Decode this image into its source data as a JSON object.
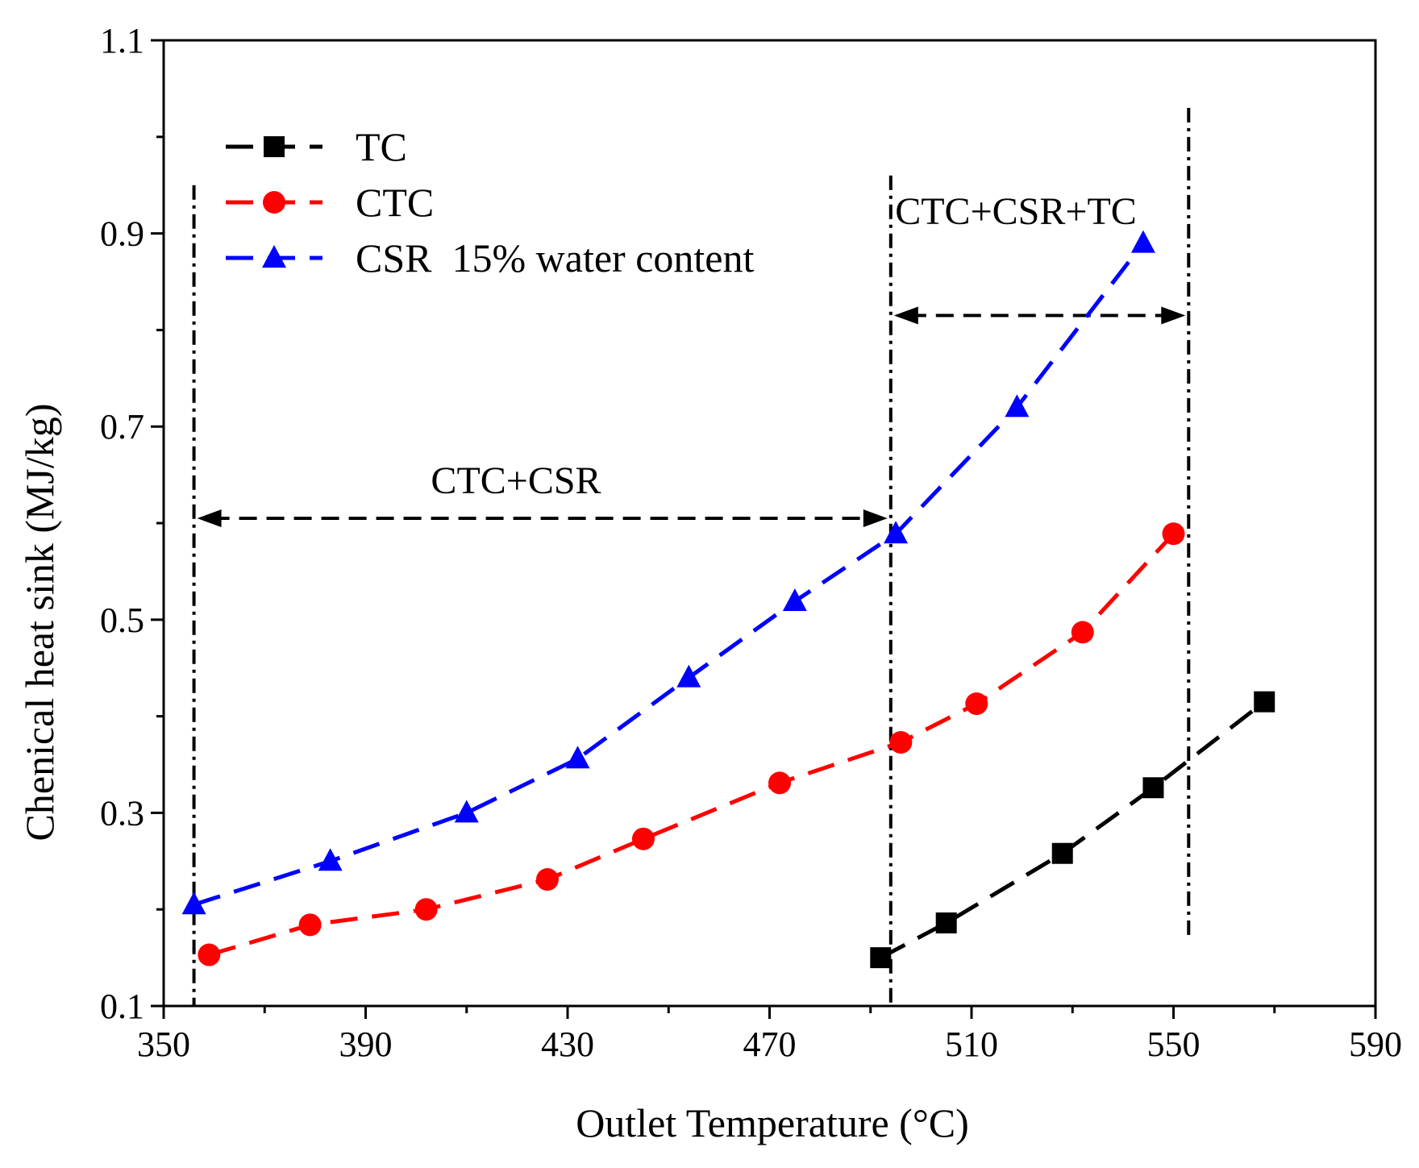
{
  "chart_data": {
    "type": "line",
    "title": "",
    "xlabel": "Outlet Temperature (°C)",
    "ylabel": "Chenical heat sink (MJ/kg)",
    "xlim": [
      350,
      590
    ],
    "ylim": [
      0.1,
      1.1
    ],
    "xticks": [
      "350",
      "390",
      "430",
      "470",
      "510",
      "550",
      "590"
    ],
    "yticks": [
      "0.1",
      "0.3",
      "0.5",
      "0.7",
      "0.9",
      "1.1"
    ],
    "legend_position": "top-left",
    "series": [
      {
        "name": "TC",
        "color": "#000000",
        "marker": "square",
        "x": [
          492,
          505,
          528,
          546,
          568
        ],
        "y": [
          0.15,
          0.186,
          0.258,
          0.326,
          0.415
        ]
      },
      {
        "name": "CTC",
        "color": "#ff0000",
        "marker": "circle",
        "x": [
          359,
          379,
          402,
          426,
          445,
          472,
          496,
          511,
          532,
          550
        ],
        "y": [
          0.153,
          0.184,
          0.2,
          0.231,
          0.273,
          0.331,
          0.373,
          0.413,
          0.487,
          0.589
        ]
      },
      {
        "name": "CSR  15% water content",
        "color": "#0000ff",
        "marker": "triangle",
        "x": [
          356,
          383,
          410,
          432,
          454,
          475,
          495,
          519,
          544
        ],
        "y": [
          0.205,
          0.25,
          0.3,
          0.356,
          0.44,
          0.519,
          0.589,
          0.72,
          0.89
        ]
      }
    ],
    "annotations": [
      {
        "text": "CTC+CSR",
        "from_x": 356,
        "to_x": 494,
        "y": 0.605
      },
      {
        "text": "CTC+CSR+TC",
        "from_x": 494,
        "to_x": 553,
        "y": 0.815
      }
    ],
    "vertical_lines": [
      {
        "x": 356,
        "y_from": 0.1,
        "y_to": 0.95
      },
      {
        "x": 494,
        "y_from": 0.1,
        "y_to": 0.96
      },
      {
        "x": 553,
        "y_from": 0.17,
        "y_to": 1.03
      }
    ]
  }
}
